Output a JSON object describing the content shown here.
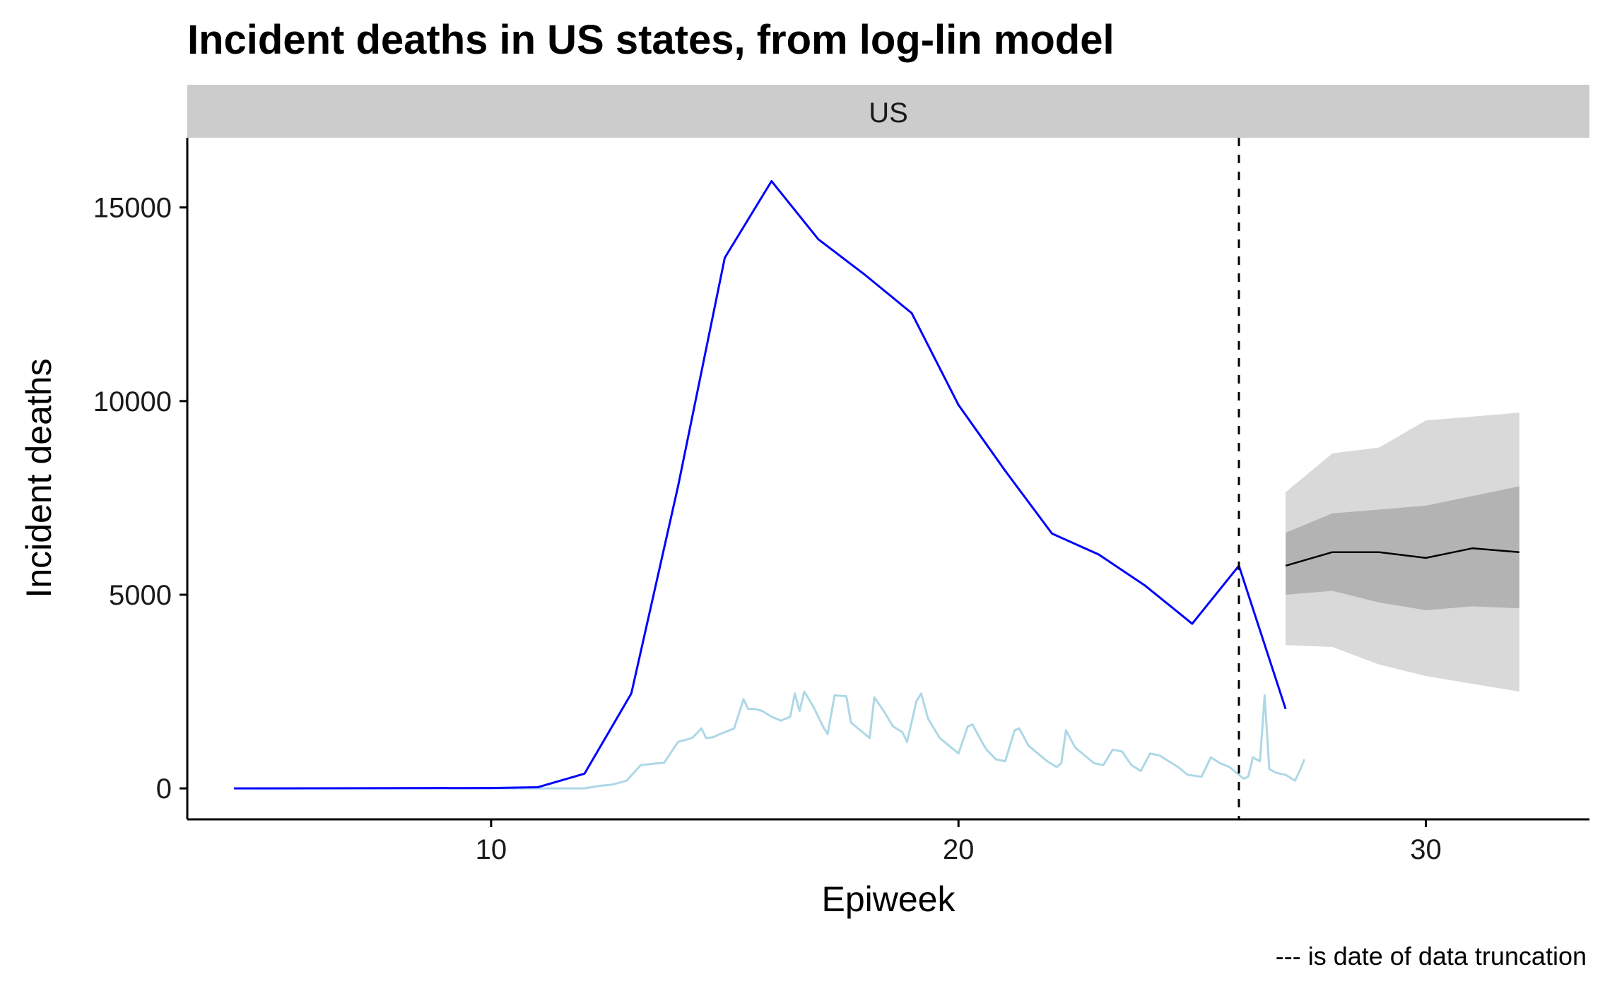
{
  "chart_data": {
    "type": "line",
    "title": "Incident deaths in US states, from log-lin model",
    "facet": "US",
    "xlabel": "Epiweek",
    "ylabel": "Incident deaths",
    "caption": "--- is date of data truncation",
    "xlim": [
      3.5,
      33.5
    ],
    "ylim": [
      -800,
      16800
    ],
    "x_ticks": [
      10,
      20,
      30
    ],
    "y_ticks": [
      0,
      5000,
      10000,
      15000
    ],
    "truncation_week": 26,
    "colors": {
      "weekly": "#0000ff",
      "daily": "#add8e6",
      "forecast": "#000000",
      "band_outer": "#d9d9d9",
      "band_inner": "#b3b3b3",
      "strip": "#cccccc",
      "vline": "#000000"
    },
    "series": [
      {
        "key": "weekly",
        "x": [
          4.5,
          4.6,
          4.7,
          4.8,
          4.9,
          10,
          11,
          12,
          13,
          14,
          15,
          16,
          17,
          18,
          19,
          20,
          21,
          22,
          23,
          24,
          25,
          26,
          27
        ],
        "values": [
          0,
          0,
          0,
          0,
          0,
          10,
          30,
          380,
          2450,
          7800,
          13700,
          15680,
          14180,
          13260,
          12270,
          9900,
          8200,
          6580,
          6040,
          5230,
          4250,
          5750,
          2050
        ]
      },
      {
        "key": "daily",
        "x": [
          5.0,
          6.0,
          7.0,
          8.0,
          9.0,
          10.0,
          11.0,
          12.0,
          12.3,
          12.6,
          12.9,
          13.2,
          13.5,
          13.7,
          14.0,
          14.3,
          14.5,
          14.6,
          14.75,
          14.85,
          15.0,
          15.2,
          15.4,
          15.5,
          15.65,
          15.8,
          16.0,
          16.2,
          16.4,
          16.5,
          16.6,
          16.7,
          16.9,
          17.1,
          17.2,
          17.35,
          17.6,
          17.7,
          17.9,
          18.1,
          18.2,
          18.4,
          18.6,
          18.8,
          18.9,
          19.1,
          19.2,
          19.35,
          19.6,
          19.8,
          20.0,
          20.2,
          20.3,
          20.5,
          20.6,
          20.8,
          21.0,
          21.2,
          21.3,
          21.5,
          21.7,
          21.9,
          22.1,
          22.2,
          22.3,
          22.5,
          22.7,
          22.9,
          23.1,
          23.3,
          23.5,
          23.7,
          23.9,
          24.1,
          24.3,
          24.5,
          24.7,
          24.9,
          25.2,
          25.4,
          25.6,
          25.8,
          26.0,
          26.1,
          26.2,
          26.3,
          26.45,
          26.55,
          26.65,
          26.8,
          27.0,
          27.2,
          27.3,
          27.4
        ],
        "values": [
          0,
          0,
          0,
          0,
          0,
          0,
          0,
          0,
          60,
          100,
          200,
          600,
          640,
          660,
          1200,
          1300,
          1550,
          1300,
          1320,
          1380,
          1450,
          1550,
          2300,
          2050,
          2050,
          2000,
          1850,
          1750,
          1850,
          2450,
          2000,
          2500,
          2100,
          1600,
          1400,
          2400,
          2380,
          1700,
          1500,
          1300,
          2350,
          2000,
          1600,
          1450,
          1200,
          2250,
          2450,
          1800,
          1300,
          1100,
          900,
          1600,
          1650,
          1200,
          1000,
          750,
          700,
          1500,
          1550,
          1100,
          900,
          700,
          550,
          650,
          1500,
          1050,
          850,
          650,
          600,
          1000,
          950,
          600,
          450,
          900,
          850,
          700,
          550,
          350,
          300,
          800,
          650,
          550,
          350,
          250,
          300,
          800,
          700,
          2400,
          500,
          400,
          350,
          200,
          450,
          750
        ]
      },
      {
        "key": "forecast_median",
        "x": [
          27,
          28,
          29,
          30,
          31,
          32
        ],
        "values": [
          5750,
          6100,
          6100,
          5950,
          6200,
          6100
        ]
      }
    ],
    "forecast_bands": {
      "x": [
        27,
        28,
        29,
        30,
        31,
        32
      ],
      "outer_lower": [
        3700,
        3650,
        3200,
        2900,
        2700,
        2500
      ],
      "outer_upper": [
        7650,
        8650,
        8800,
        9500,
        9600,
        9700
      ],
      "inner_lower": [
        5000,
        5100,
        4800,
        4600,
        4700,
        4650
      ],
      "inner_upper": [
        6600,
        7100,
        7200,
        7300,
        7550,
        7800
      ]
    }
  }
}
